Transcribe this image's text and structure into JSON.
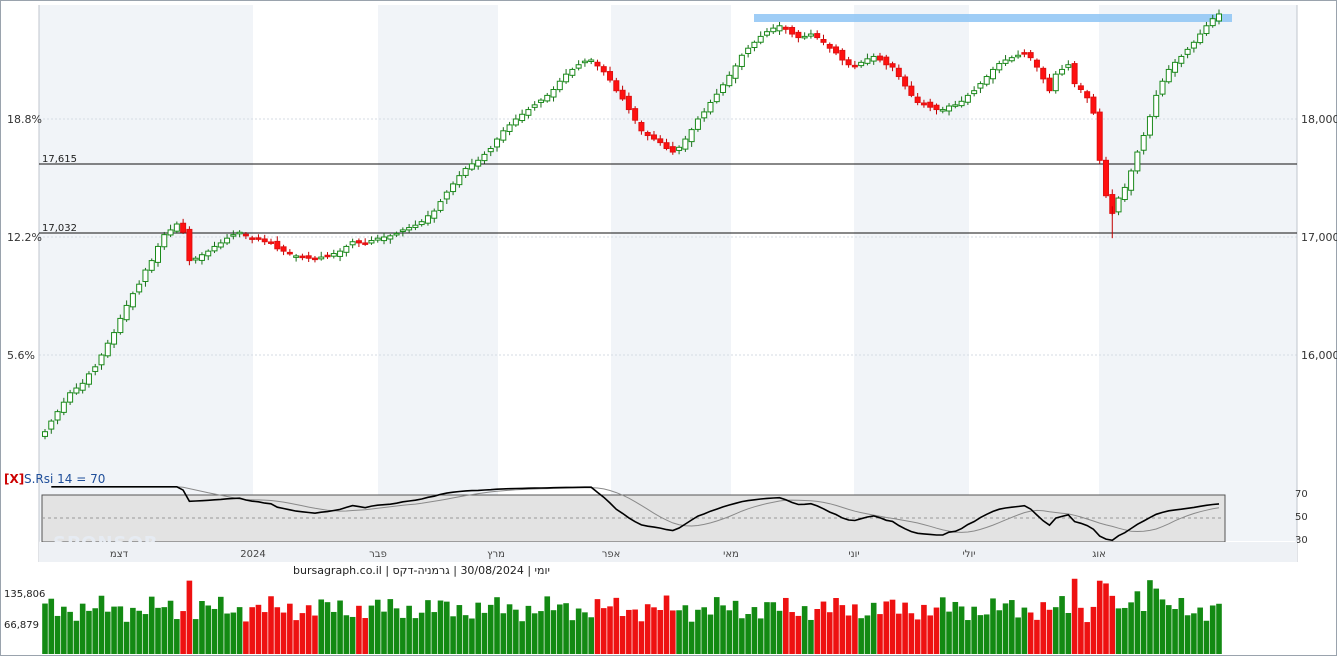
{
  "chart_data": {
    "type": "candlestick",
    "timeframe": "יומי",
    "instrument": "גרמניה-דקס",
    "date": "30/08/2024",
    "source": "bursagraph.co.il",
    "price_axis": {
      "ticks": [
        "16,000",
        "17,000",
        "18,000"
      ],
      "range": [
        15000,
        18900
      ]
    },
    "percent_axis": {
      "ticks": [
        "5.6%",
        "12.2%",
        "18.8%"
      ]
    },
    "months": [
      "דצמ",
      "2024",
      "פבר",
      "מרץ",
      "אפר",
      "מאי",
      "יוני",
      "יולי",
      "אוג"
    ],
    "levels": [
      {
        "label": "17,615",
        "value": 17615
      },
      {
        "label": "17,032",
        "value": 17032
      }
    ],
    "resistance_zone": {
      "from": 18788,
      "to": 18850
    },
    "closes": [
      15350,
      15440,
      15520,
      15600,
      15680,
      15720,
      15760,
      15840,
      15900,
      16000,
      16100,
      16190,
      16310,
      16420,
      16520,
      16600,
      16720,
      16800,
      16920,
      17020,
      17060,
      17110,
      17040,
      16800,
      16820,
      16850,
      16880,
      16920,
      16950,
      16990,
      17020,
      17040,
      17010,
      16990,
      16980,
      16960,
      16950,
      16900,
      16880,
      16860,
      16840,
      16830,
      16820,
      16810,
      16830,
      16840,
      16860,
      16880,
      16920,
      16960,
      16950,
      16940,
      16970,
      16990,
      17000,
      17010,
      17030,
      17060,
      17080,
      17100,
      17130,
      17180,
      17220,
      17300,
      17380,
      17450,
      17520,
      17580,
      17620,
      17650,
      17700,
      17750,
      17830,
      17900,
      17950,
      18000,
      18040,
      18080,
      18120,
      18160,
      18200,
      18250,
      18320,
      18380,
      18420,
      18460,
      18490,
      18500,
      18450,
      18400,
      18330,
      18240,
      18170,
      18080,
      17990,
      17900,
      17860,
      17830,
      17800,
      17750,
      17720,
      17760,
      17830,
      17910,
      18000,
      18060,
      18140,
      18210,
      18290,
      18370,
      18450,
      18540,
      18600,
      18650,
      18700,
      18740,
      18770,
      18790,
      18760,
      18720,
      18690,
      18700,
      18720,
      18690,
      18650,
      18600,
      18560,
      18500,
      18460,
      18450,
      18480,
      18510,
      18530,
      18500,
      18460,
      18440,
      18360,
      18280,
      18200,
      18140,
      18120,
      18100,
      18080,
      18080,
      18110,
      18120,
      18150,
      18200,
      18240,
      18300,
      18360,
      18420,
      18470,
      18500,
      18520,
      18540,
      18560,
      18520,
      18440,
      18340,
      18240,
      18380,
      18420,
      18460,
      18300,
      18250,
      18180,
      18050,
      17650,
      17350,
      17200,
      17330,
      17420,
      17560,
      17720,
      17860,
      18020,
      18200,
      18320,
      18420,
      18480,
      18530,
      18590,
      18650,
      18720,
      18790,
      18850,
      18890
    ],
    "rsi": {
      "title": "S.Rsi 14 = 70",
      "close_marker": "[X]",
      "ticks": [
        "70",
        "50",
        "30"
      ],
      "band": [
        30,
        70
      ],
      "range": [
        20,
        80
      ],
      "current": 70
    },
    "volume": {
      "labels": [
        "135,806",
        "66,879"
      ]
    }
  },
  "watermark": "SPONSOR"
}
